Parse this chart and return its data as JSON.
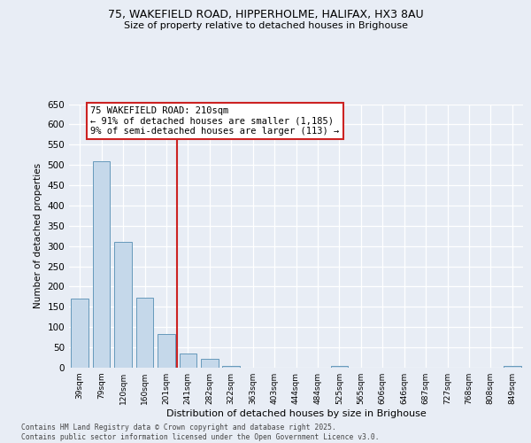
{
  "title_line1": "75, WAKEFIELD ROAD, HIPPERHOLME, HALIFAX, HX3 8AU",
  "title_line2": "Size of property relative to detached houses in Brighouse",
  "xlabel": "Distribution of detached houses by size in Brighouse",
  "ylabel": "Number of detached properties",
  "bar_color": "#c5d8ea",
  "bar_edge_color": "#6699bb",
  "vline_color": "#cc2222",
  "vline_pos": 4.5,
  "categories": [
    "39sqm",
    "79sqm",
    "120sqm",
    "160sqm",
    "201sqm",
    "241sqm",
    "282sqm",
    "322sqm",
    "363sqm",
    "403sqm",
    "444sqm",
    "484sqm",
    "525sqm",
    "565sqm",
    "606sqm",
    "646sqm",
    "687sqm",
    "727sqm",
    "768sqm",
    "808sqm",
    "849sqm"
  ],
  "values": [
    170,
    510,
    310,
    172,
    82,
    35,
    22,
    5,
    0,
    0,
    0,
    0,
    5,
    0,
    0,
    0,
    0,
    0,
    0,
    0,
    5
  ],
  "annotation_text": "75 WAKEFIELD ROAD: 210sqm\n← 91% of detached houses are smaller (1,185)\n9% of semi-detached houses are larger (113) →",
  "bg_color": "#e8edf5",
  "grid_color": "#ffffff",
  "footer_text": "Contains HM Land Registry data © Crown copyright and database right 2025.\nContains public sector information licensed under the Open Government Licence v3.0.",
  "ylim": [
    0,
    650
  ],
  "yticks": [
    0,
    50,
    100,
    150,
    200,
    250,
    300,
    350,
    400,
    450,
    500,
    550,
    600,
    650
  ]
}
